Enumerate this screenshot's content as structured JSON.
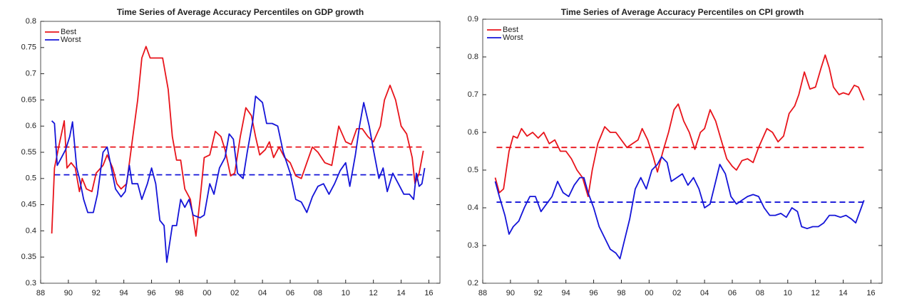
{
  "chart_data": [
    {
      "type": "line",
      "title": "Time Series of Average Accuracy Percentiles on GDP growth",
      "xlim": [
        88,
        116.8
      ],
      "ylim": [
        0.3,
        0.8
      ],
      "xticks": [
        88,
        90,
        92,
        94,
        96,
        98,
        {
          "value": 100,
          "label": "00"
        },
        {
          "value": 102,
          "label": "02"
        },
        {
          "value": 104,
          "label": "04"
        },
        {
          "value": 106,
          "label": "06"
        },
        {
          "value": 108,
          "label": "08"
        },
        {
          "value": 110,
          "label": "10"
        },
        {
          "value": 112,
          "label": "12"
        },
        {
          "value": 114,
          "label": "14"
        },
        {
          "value": 116,
          "label": "16"
        }
      ],
      "yticks": [
        0.3,
        0.35,
        0.4,
        0.45,
        0.5,
        0.55,
        0.6,
        0.65,
        0.7,
        0.75,
        0.8
      ],
      "legend": "upper left",
      "mean_lines": [
        {
          "value": 0.56,
          "color": "#e8141b"
        },
        {
          "value": 0.507,
          "color": "#1414d8"
        }
      ],
      "series": [
        {
          "name": "Best",
          "color": "#e8141b",
          "x": [
            88.8,
            89.0,
            89.3,
            89.7,
            89.9,
            90.2,
            90.5,
            90.8,
            91.0,
            91.3,
            91.7,
            92.0,
            92.5,
            92.8,
            93.2,
            93.5,
            93.8,
            94.2,
            94.6,
            95.0,
            95.3,
            95.6,
            95.9,
            96.3,
            96.8,
            97.2,
            97.5,
            97.8,
            98.1,
            98.4,
            98.8,
            99.2,
            99.5,
            99.8,
            100.2,
            100.6,
            101.0,
            101.3,
            101.7,
            102.0,
            102.4,
            102.8,
            103.2,
            103.5,
            103.8,
            104.2,
            104.5,
            104.8,
            105.2,
            105.6,
            106.0,
            106.4,
            106.8,
            107.2,
            107.6,
            108.0,
            108.5,
            109.0,
            109.5,
            110.0,
            110.4,
            110.8,
            111.2,
            111.6,
            112.0,
            112.5,
            112.8,
            113.2,
            113.6,
            114.0,
            114.4,
            114.8,
            115.0,
            115.3,
            115.6
          ],
          "values": [
            0.395,
            0.52,
            0.56,
            0.61,
            0.52,
            0.53,
            0.52,
            0.475,
            0.5,
            0.48,
            0.475,
            0.51,
            0.525,
            0.545,
            0.52,
            0.49,
            0.48,
            0.49,
            0.57,
            0.65,
            0.73,
            0.752,
            0.73,
            0.73,
            0.73,
            0.67,
            0.58,
            0.535,
            0.535,
            0.48,
            0.46,
            0.39,
            0.46,
            0.54,
            0.545,
            0.59,
            0.58,
            0.555,
            0.505,
            0.51,
            0.58,
            0.635,
            0.62,
            0.58,
            0.545,
            0.555,
            0.57,
            0.54,
            0.56,
            0.54,
            0.53,
            0.505,
            0.5,
            0.53,
            0.56,
            0.55,
            0.53,
            0.525,
            0.6,
            0.57,
            0.565,
            0.595,
            0.595,
            0.58,
            0.57,
            0.6,
            0.65,
            0.678,
            0.65,
            0.6,
            0.585,
            0.54,
            0.49,
            0.51,
            0.553
          ]
        },
        {
          "name": "Worst",
          "color": "#1414d8",
          "x": [
            88.8,
            89.0,
            89.2,
            89.5,
            89.8,
            90.1,
            90.3,
            90.6,
            90.8,
            91.1,
            91.4,
            91.8,
            92.1,
            92.5,
            92.8,
            93.1,
            93.4,
            93.8,
            94.1,
            94.4,
            94.6,
            95.0,
            95.3,
            95.7,
            96.0,
            96.3,
            96.6,
            96.9,
            97.1,
            97.5,
            97.8,
            98.1,
            98.4,
            98.7,
            99.0,
            99.5,
            99.8,
            100.2,
            100.5,
            100.9,
            101.3,
            101.6,
            101.9,
            102.2,
            102.6,
            102.9,
            103.3,
            103.5,
            104.0,
            104.3,
            104.7,
            105.1,
            105.5,
            106.0,
            106.4,
            106.8,
            107.2,
            107.6,
            108.0,
            108.4,
            108.8,
            109.2,
            109.6,
            110.0,
            110.3,
            110.7,
            111.0,
            111.3,
            111.7,
            112.0,
            112.4,
            112.7,
            113.0,
            113.4,
            113.8,
            114.2,
            114.6,
            114.9,
            115.1,
            115.3,
            115.5,
            115.7
          ],
          "values": [
            0.61,
            0.605,
            0.525,
            0.54,
            0.555,
            0.58,
            0.608,
            0.52,
            0.5,
            0.46,
            0.435,
            0.435,
            0.47,
            0.55,
            0.56,
            0.52,
            0.48,
            0.465,
            0.475,
            0.525,
            0.49,
            0.49,
            0.46,
            0.49,
            0.52,
            0.49,
            0.42,
            0.41,
            0.34,
            0.41,
            0.41,
            0.46,
            0.445,
            0.46,
            0.43,
            0.425,
            0.43,
            0.49,
            0.47,
            0.52,
            0.54,
            0.585,
            0.575,
            0.51,
            0.5,
            0.55,
            0.61,
            0.657,
            0.645,
            0.605,
            0.605,
            0.6,
            0.55,
            0.51,
            0.46,
            0.455,
            0.435,
            0.465,
            0.485,
            0.49,
            0.47,
            0.49,
            0.515,
            0.53,
            0.485,
            0.545,
            0.6,
            0.645,
            0.6,
            0.555,
            0.5,
            0.52,
            0.475,
            0.51,
            0.49,
            0.47,
            0.47,
            0.46,
            0.51,
            0.485,
            0.49,
            0.52
          ]
        }
      ]
    },
    {
      "type": "line",
      "title": "Time Series of Average Accuracy Percentiles on CPI growth",
      "xlim": [
        88,
        116.8
      ],
      "ylim": [
        0.2,
        0.9
      ],
      "xticks": [
        88,
        90,
        92,
        94,
        96,
        98,
        {
          "value": 100,
          "label": "00"
        },
        {
          "value": 102,
          "label": "02"
        },
        {
          "value": 104,
          "label": "04"
        },
        {
          "value": 106,
          "label": "06"
        },
        {
          "value": 108,
          "label": "08"
        },
        {
          "value": 110,
          "label": "10"
        },
        {
          "value": 112,
          "label": "12"
        },
        {
          "value": 114,
          "label": "14"
        },
        {
          "value": 116,
          "label": "16"
        }
      ],
      "yticks": [
        0.2,
        0.3,
        0.4,
        0.5,
        0.6,
        0.7,
        0.8,
        0.9
      ],
      "legend": "upper left",
      "mean_lines": [
        {
          "value": 0.56,
          "color": "#e8141b"
        },
        {
          "value": 0.415,
          "color": "#1414d8"
        }
      ],
      "series": [
        {
          "name": "Best",
          "color": "#e8141b",
          "x": [
            88.9,
            89.2,
            89.5,
            89.9,
            90.2,
            90.5,
            90.8,
            91.2,
            91.6,
            92.0,
            92.4,
            92.8,
            93.2,
            93.6,
            94.0,
            94.4,
            94.8,
            95.2,
            95.6,
            95.9,
            96.3,
            96.8,
            97.2,
            97.6,
            98.0,
            98.4,
            98.8,
            99.2,
            99.5,
            99.9,
            100.3,
            100.6,
            101.0,
            101.4,
            101.8,
            102.1,
            102.5,
            102.9,
            103.3,
            103.7,
            104.0,
            104.4,
            104.8,
            105.2,
            105.6,
            106.0,
            106.3,
            106.7,
            107.1,
            107.5,
            107.9,
            108.5,
            108.9,
            109.3,
            109.7,
            110.1,
            110.5,
            110.8,
            111.2,
            111.6,
            112.0,
            112.4,
            112.7,
            113.0,
            113.3,
            113.7,
            114.0,
            114.4,
            114.8,
            115.1,
            115.5
          ],
          "values": [
            0.48,
            0.44,
            0.45,
            0.55,
            0.59,
            0.585,
            0.61,
            0.59,
            0.6,
            0.585,
            0.6,
            0.57,
            0.58,
            0.55,
            0.55,
            0.53,
            0.5,
            0.48,
            0.43,
            0.5,
            0.57,
            0.615,
            0.6,
            0.6,
            0.58,
            0.56,
            0.57,
            0.58,
            0.61,
            0.58,
            0.535,
            0.495,
            0.55,
            0.6,
            0.66,
            0.675,
            0.63,
            0.6,
            0.555,
            0.6,
            0.61,
            0.66,
            0.63,
            0.58,
            0.53,
            0.51,
            0.5,
            0.525,
            0.53,
            0.52,
            0.56,
            0.61,
            0.6,
            0.575,
            0.59,
            0.65,
            0.67,
            0.7,
            0.76,
            0.715,
            0.72,
            0.77,
            0.805,
            0.77,
            0.72,
            0.7,
            0.705,
            0.7,
            0.725,
            0.72,
            0.685
          ]
        },
        {
          "name": "Worst",
          "color": "#1414d8",
          "x": [
            88.9,
            89.2,
            89.6,
            89.9,
            90.2,
            90.6,
            91.0,
            91.4,
            91.8,
            92.2,
            92.6,
            93.0,
            93.4,
            93.8,
            94.2,
            94.6,
            95.0,
            95.3,
            95.6,
            96.0,
            96.4,
            96.8,
            97.2,
            97.6,
            97.9,
            98.2,
            98.6,
            99.0,
            99.4,
            99.8,
            100.2,
            100.6,
            100.9,
            101.3,
            101.6,
            102.0,
            102.4,
            102.8,
            103.2,
            103.6,
            104.0,
            104.4,
            104.8,
            105.1,
            105.5,
            105.9,
            106.3,
            106.7,
            107.1,
            107.5,
            107.9,
            108.3,
            108.7,
            109.1,
            109.5,
            109.9,
            110.3,
            110.7,
            111.0,
            111.4,
            111.8,
            112.2,
            112.6,
            113.0,
            113.4,
            113.8,
            114.2,
            114.6,
            114.9,
            115.2,
            115.5
          ],
          "values": [
            0.47,
            0.43,
            0.38,
            0.33,
            0.35,
            0.365,
            0.4,
            0.43,
            0.43,
            0.39,
            0.41,
            0.43,
            0.47,
            0.44,
            0.43,
            0.46,
            0.48,
            0.48,
            0.44,
            0.4,
            0.35,
            0.32,
            0.29,
            0.28,
            0.265,
            0.31,
            0.37,
            0.45,
            0.48,
            0.45,
            0.5,
            0.515,
            0.535,
            0.52,
            0.47,
            0.48,
            0.49,
            0.46,
            0.48,
            0.45,
            0.4,
            0.41,
            0.47,
            0.515,
            0.49,
            0.43,
            0.41,
            0.42,
            0.43,
            0.435,
            0.43,
            0.4,
            0.38,
            0.38,
            0.385,
            0.375,
            0.4,
            0.39,
            0.35,
            0.345,
            0.35,
            0.35,
            0.36,
            0.38,
            0.38,
            0.375,
            0.38,
            0.37,
            0.36,
            0.39,
            0.42
          ]
        }
      ]
    }
  ]
}
